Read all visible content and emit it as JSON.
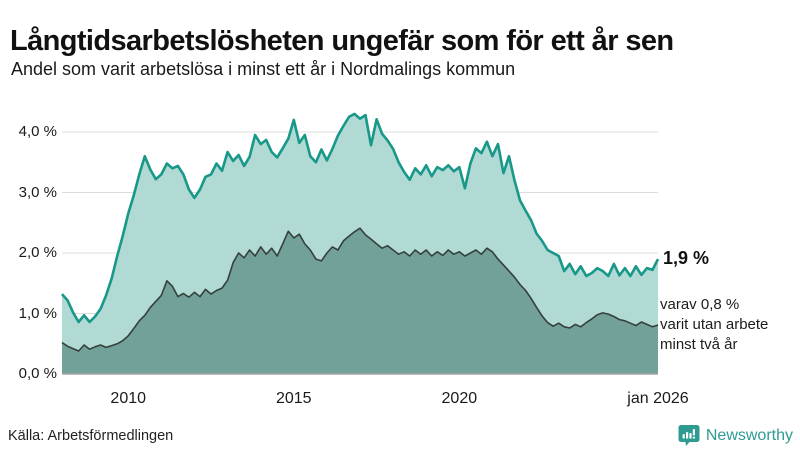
{
  "header": {
    "title": "Långtidsarbetslösheten ungefär som för ett år sen",
    "subtitle": "Andel som varit arbetslösa i minst ett år i Nordmalings kommun"
  },
  "chart_data": {
    "type": "area",
    "title": "Långtidsarbetslösheten ungefär som för ett år sen",
    "subtitle": "Andel som varit arbetslösa i minst ett år i Nordmalings kommun",
    "x_start": 2008.0,
    "x_end": 2026.0,
    "x_unit": "year (monthly series, jan 2008 – jan 2026)",
    "ylim": [
      0,
      4.45
    ],
    "grid": true,
    "grid_color": "#dcdcdc",
    "baseline_color": "#a6a6a6",
    "y_axis": {
      "ticks": [
        {
          "label": "0,0 %",
          "value": 0
        },
        {
          "label": "1,0 %",
          "value": 1
        },
        {
          "label": "2,0 %",
          "value": 2
        },
        {
          "label": "3,0 %",
          "value": 3
        },
        {
          "label": "4,0 %",
          "value": 4
        }
      ]
    },
    "x_axis": {
      "ticks": [
        {
          "label": "2010",
          "value": 2010
        },
        {
          "label": "2015",
          "value": 2015
        },
        {
          "label": "2020",
          "value": 2020
        },
        {
          "label": "jan 2026",
          "value": 2026
        }
      ]
    },
    "series": [
      {
        "name": "Arbetslösa minst ett år",
        "color": "#189889",
        "fill": "#b0dad3",
        "stroke_width": 2.6,
        "latest_label": "1,9 %",
        "values": [
          1.32,
          1.22,
          1.02,
          0.86,
          0.97,
          0.86,
          0.95,
          1.08,
          1.3,
          1.58,
          1.95,
          2.28,
          2.65,
          2.95,
          3.3,
          3.6,
          3.38,
          3.22,
          3.3,
          3.48,
          3.4,
          3.44,
          3.3,
          3.05,
          2.91,
          3.05,
          3.26,
          3.3,
          3.48,
          3.36,
          3.67,
          3.52,
          3.62,
          3.44,
          3.59,
          3.95,
          3.8,
          3.87,
          3.67,
          3.58,
          3.73,
          3.89,
          4.2,
          3.82,
          3.95,
          3.6,
          3.5,
          3.71,
          3.53,
          3.72,
          3.94,
          4.1,
          4.25,
          4.3,
          4.22,
          4.28,
          3.78,
          4.21,
          3.97,
          3.86,
          3.72,
          3.5,
          3.34,
          3.21,
          3.4,
          3.3,
          3.45,
          3.27,
          3.42,
          3.37,
          3.45,
          3.35,
          3.42,
          3.07,
          3.48,
          3.73,
          3.65,
          3.84,
          3.6,
          3.8,
          3.32,
          3.6,
          3.2,
          2.87,
          2.7,
          2.54,
          2.32,
          2.2,
          2.05,
          2.0,
          1.95,
          1.7,
          1.82,
          1.65,
          1.78,
          1.62,
          1.67,
          1.75,
          1.7,
          1.62,
          1.82,
          1.63,
          1.75,
          1.62,
          1.78,
          1.64,
          1.75,
          1.72,
          1.9
        ]
      },
      {
        "name": "varav arbetslösa minst två år",
        "color": "#35403d",
        "fill": "#72a19a",
        "stroke_width": 1.6,
        "latest_label": "0,8 %",
        "values": [
          0.52,
          0.46,
          0.42,
          0.38,
          0.48,
          0.41,
          0.45,
          0.48,
          0.44,
          0.47,
          0.5,
          0.55,
          0.63,
          0.75,
          0.88,
          0.97,
          1.1,
          1.2,
          1.3,
          1.54,
          1.45,
          1.28,
          1.33,
          1.27,
          1.35,
          1.28,
          1.4,
          1.32,
          1.38,
          1.42,
          1.55,
          1.84,
          2.0,
          1.92,
          2.05,
          1.95,
          2.1,
          1.98,
          2.08,
          1.95,
          2.15,
          2.36,
          2.25,
          2.31,
          2.15,
          2.05,
          1.9,
          1.87,
          2.0,
          2.1,
          2.05,
          2.2,
          2.28,
          2.35,
          2.41,
          2.3,
          2.23,
          2.15,
          2.08,
          2.12,
          2.05,
          1.98,
          2.02,
          1.95,
          2.05,
          1.98,
          2.05,
          1.95,
          2.02,
          1.96,
          2.05,
          1.98,
          2.02,
          1.95,
          2.0,
          2.05,
          1.98,
          2.08,
          2.02,
          1.9,
          1.8,
          1.7,
          1.6,
          1.48,
          1.38,
          1.25,
          1.1,
          0.96,
          0.85,
          0.79,
          0.84,
          0.78,
          0.76,
          0.82,
          0.78,
          0.85,
          0.91,
          0.98,
          1.01,
          0.99,
          0.95,
          0.9,
          0.88,
          0.84,
          0.8,
          0.86,
          0.82,
          0.78,
          0.81
        ]
      }
    ]
  },
  "annotations": {
    "latest_value": "1,9 %",
    "note_lines": [
      "varav 0,8 %",
      "varit utan arbete",
      "minst två år"
    ]
  },
  "footer": {
    "source": "Källa: Arbetsförmedlingen",
    "brand": "Newsworthy",
    "brand_color": "#2e9b91"
  }
}
